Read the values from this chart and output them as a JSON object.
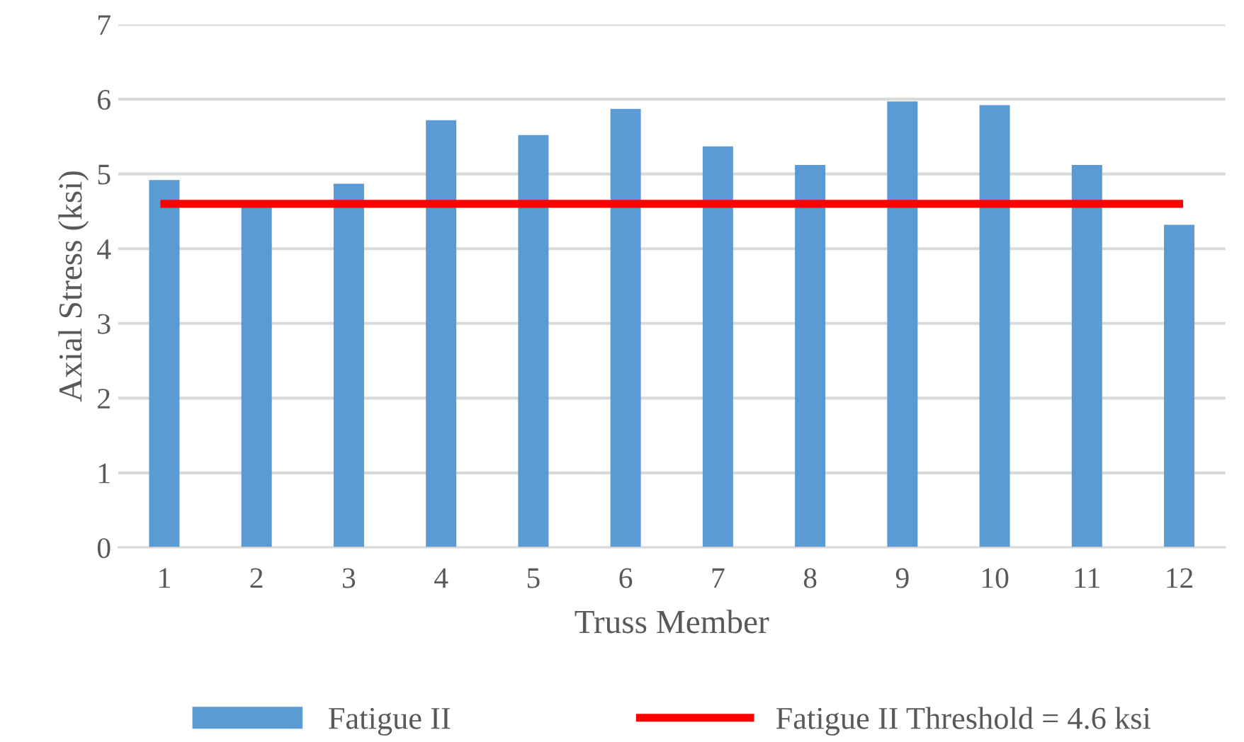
{
  "chart_data": {
    "type": "bar",
    "xlabel": "Truss Member",
    "ylabel": "Axial Stress (ksi)",
    "categories": [
      "1",
      "2",
      "3",
      "4",
      "5",
      "6",
      "7",
      "8",
      "9",
      "10",
      "11",
      "12"
    ],
    "series": [
      {
        "name": "Fatigue II",
        "color": "#5b9bd5",
        "values": [
          4.92,
          4.58,
          4.87,
          5.72,
          5.52,
          5.87,
          5.37,
          5.12,
          5.97,
          5.92,
          5.12,
          4.32
        ]
      },
      {
        "name": "Fatigue II Threshold = 4.6 ksi",
        "type": "line",
        "color": "#ff0000",
        "values": [
          4.6,
          4.6,
          4.6,
          4.6,
          4.6,
          4.6,
          4.6,
          4.6,
          4.6,
          4.6,
          4.6,
          4.6
        ]
      }
    ],
    "ylim": [
      0,
      7
    ],
    "yticks": [
      0,
      1,
      2,
      3,
      4,
      5,
      6,
      7
    ],
    "grid": "y",
    "legend": "bottom"
  }
}
